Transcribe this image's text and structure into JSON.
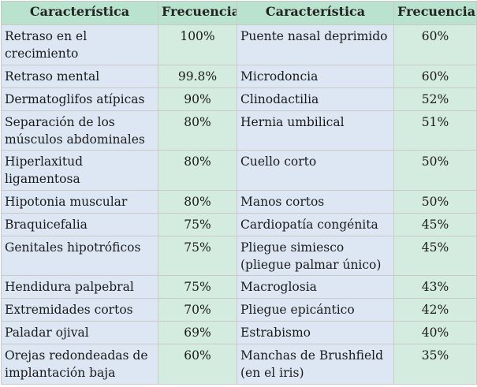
{
  "table": {
    "headers": [
      "Característica",
      "Frecuencia",
      "Característica",
      "Frecuencia"
    ],
    "rows": [
      {
        "c1": "Retraso en el crecimiento",
        "f1": "100%",
        "c2": "Puente nasal deprimido",
        "f2": "60%"
      },
      {
        "c1": "Retraso mental",
        "f1": "99.8%",
        "c2": "Microdoncia",
        "f2": "60%"
      },
      {
        "c1": "Dermatoglifos atípicas",
        "f1": "90%",
        "c2": "Clinodactilia",
        "f2": "52%"
      },
      {
        "c1": "Separación de los músculos abdominales",
        "f1": "80%",
        "c2": "Hernia umbilical",
        "f2": "51%"
      },
      {
        "c1": "Hiperlaxitud ligamentosa",
        "f1": "80%",
        "c2": "Cuello corto",
        "f2": "50%"
      },
      {
        "c1": "Hipotonia muscular",
        "f1": "80%",
        "c2": "Manos cortos",
        "f2": "50%"
      },
      {
        "c1": "Braquicefalia",
        "f1": "75%",
        "c2": "Cardiopatía congénita",
        "f2": "45%"
      },
      {
        "c1": "Genitales hipotróficos",
        "f1": "75%",
        "c2": "Pliegue simiesco (pliegue palmar único)",
        "f2": "45%"
      },
      {
        "c1": "Hendidura palpebral",
        "f1": "75%",
        "c2": "Macroglosia",
        "f2": "43%"
      },
      {
        "c1": "Extremidades cortos",
        "f1": "70%",
        "c2": "Pliegue epicántico",
        "f2": "42%"
      },
      {
        "c1": "Paladar ojival",
        "f1": "69%",
        "c2": "Estrabismo",
        "f2": "40%"
      },
      {
        "c1": "Orejas redondeadas de implantación baja",
        "f1": "60%",
        "c2": "Manchas de Brushfield (en el iris)",
        "f2": "35%"
      }
    ]
  }
}
